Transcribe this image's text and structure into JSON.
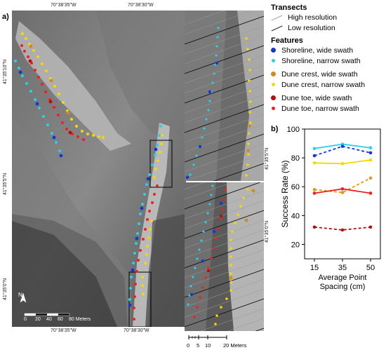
{
  "panel_labels": {
    "a": "a)",
    "b": "b)"
  },
  "map": {
    "top_coords": [
      "70°38'35\"W",
      "70°38'30\"W"
    ],
    "bottom_coords": [
      "70°38'35\"W",
      "70°38'30\"W"
    ],
    "left_coords": [
      "41°35'10\"N",
      "41°35'5\"N",
      "41°35'0\"N"
    ],
    "right_coords": [
      "41°35'5\"N",
      "41°35'0\"N"
    ],
    "north_label": "N",
    "scale_main": {
      "ticks": [
        "0",
        "20",
        "40",
        "60",
        "80 Meters"
      ]
    },
    "scale_inset": {
      "ticks": [
        "0",
        "5",
        "10",
        "20 Meters"
      ]
    }
  },
  "legend": {
    "transects_title": "Transects",
    "transects": [
      {
        "label": "High resolution",
        "style": "hi"
      },
      {
        "label": "Low resolution",
        "style": "lo"
      }
    ],
    "features_title": "Features",
    "features": [
      {
        "label": "Shoreline, wide swath",
        "color": "#1535d4"
      },
      {
        "label": "Shoreline, narrow swath",
        "color": "#2ad0e8"
      },
      {
        "label": "Dune crest, wide swath",
        "color": "#d08a20"
      },
      {
        "label": "Dune crest, narrow swath",
        "color": "#f5d800"
      },
      {
        "label": "Dune toe, wide swath",
        "color": "#b01010"
      },
      {
        "label": "Dune toe, narrow swath",
        "color": "#f02020"
      }
    ]
  },
  "chart_data": {
    "type": "line",
    "title": "",
    "xlabel": "Average Point Spacing (cm)",
    "ylabel": "Success Rate (%)",
    "x": [
      15,
      35,
      50
    ],
    "ylim": [
      10,
      100
    ],
    "yticks": [
      20,
      40,
      60,
      80,
      100
    ],
    "grid": false,
    "series": [
      {
        "values": [
          86.5,
          89.5,
          87
        ],
        "color": "#2ad0e8",
        "dashed": false
      },
      {
        "values": [
          81.5,
          88,
          83.5
        ],
        "color": "#1535d4",
        "dashed": true
      },
      {
        "values": [
          76.5,
          76,
          78.5
        ],
        "color": "#f5d800",
        "dashed": false
      },
      {
        "values": [
          58,
          56,
          66
        ],
        "color": "#d89a20",
        "dashed": true
      },
      {
        "values": [
          55.5,
          58.5,
          55.5
        ],
        "color": "#f02020",
        "dashed": false
      },
      {
        "values": [
          32,
          30,
          32
        ],
        "color": "#b01010",
        "dashed": true
      }
    ]
  }
}
